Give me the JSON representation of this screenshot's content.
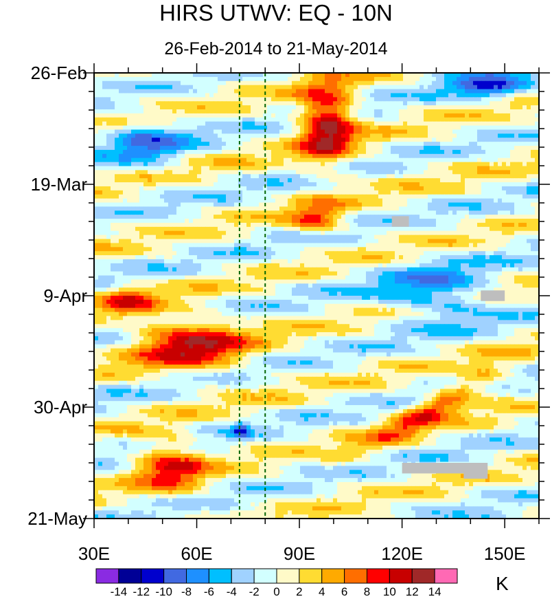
{
  "chart_data": {
    "type": "heatmap",
    "title": "HIRS UTWV: EQ - 10N",
    "subtitle": "26-Feb-2014 to 21-May-2014",
    "xlabel": "",
    "ylabel": "",
    "x_range": [
      30,
      160
    ],
    "x_ticks": [
      {
        "value": 30,
        "label": "30E"
      },
      {
        "value": 60,
        "label": "60E"
      },
      {
        "value": 90,
        "label": "90E"
      },
      {
        "value": 120,
        "label": "120E"
      },
      {
        "value": 150,
        "label": "150E"
      }
    ],
    "y_range_days_since_26feb": [
      0,
      84
    ],
    "y_ticks": [
      {
        "value": 0,
        "label": "26-Feb"
      },
      {
        "value": 21,
        "label": "19-Mar"
      },
      {
        "value": 42,
        "label": "9-Apr"
      },
      {
        "value": 63,
        "label": "30-Apr"
      },
      {
        "value": 84,
        "label": "21-May"
      }
    ],
    "reference_lines_lon": [
      72.5,
      80
    ],
    "colorbar": {
      "units": "K",
      "colors": [
        "#8a2be2",
        "#000096",
        "#0000cd",
        "#4169e1",
        "#1e90ff",
        "#00bfff",
        "#a0d2ff",
        "#d2ffff",
        "#fffac8",
        "#ffdc32",
        "#ffaa00",
        "#ff6e00",
        "#ff0000",
        "#c80000",
        "#a02828",
        "#ff69b4"
      ],
      "levels": [
        -14,
        -12,
        -10,
        -8,
        -6,
        -4,
        -2,
        0,
        2,
        4,
        6,
        8,
        10,
        12,
        14
      ],
      "level_labels": [
        "-14",
        "-12",
        "-10",
        "-8",
        "-6",
        "-4",
        "-2",
        "0",
        "2",
        "4",
        "6",
        "8",
        "10",
        "12",
        "14"
      ]
    },
    "anomaly_features": [
      {
        "lon": [
          88,
          108
        ],
        "day": [
          0,
          19
        ],
        "value": 13,
        "note": "positive anomaly near 90E-105E, late Feb to mid Mar"
      },
      {
        "lon": [
          38,
          78
        ],
        "day": [
          45,
          57
        ],
        "value": 11,
        "note": "strong positive anomaly 40E-75E, mid April"
      },
      {
        "lon": [
          30,
          50
        ],
        "day": [
          40,
          46
        ],
        "value": 8
      },
      {
        "lon": [
          40,
          65
        ],
        "day": [
          68,
          80
        ],
        "value": 9,
        "note": "positive anomaly 45E-60E, mid May"
      },
      {
        "lon": [
          105,
          155
        ],
        "day": [
          53,
          73
        ],
        "value": 9,
        "note": "eastward tilted positive band"
      },
      {
        "lon": [
          85,
          105
        ],
        "day": [
          24,
          31
        ],
        "value": 8
      },
      {
        "lon": [
          130,
          160
        ],
        "day": [
          0,
          5
        ],
        "value": -9
      },
      {
        "lon": [
          30,
          60
        ],
        "day": [
          8,
          18
        ],
        "value": -7
      },
      {
        "lon": [
          110,
          150
        ],
        "day": [
          35,
          48
        ],
        "value": -7
      },
      {
        "lon": [
          70,
          76
        ],
        "day": [
          66,
          69
        ],
        "value": -11
      }
    ],
    "missing_boxes": [
      {
        "lon": [
          117,
          122
        ],
        "day": [
          27,
          29
        ]
      },
      {
        "lon": [
          143,
          150
        ],
        "day": [
          41,
          43
        ]
      },
      {
        "lon": [
          120,
          145
        ],
        "day": [
          73.5,
          75.5
        ]
      },
      {
        "lon": [
          138,
          145
        ],
        "day": [
          74.5,
          76.5
        ]
      }
    ]
  }
}
